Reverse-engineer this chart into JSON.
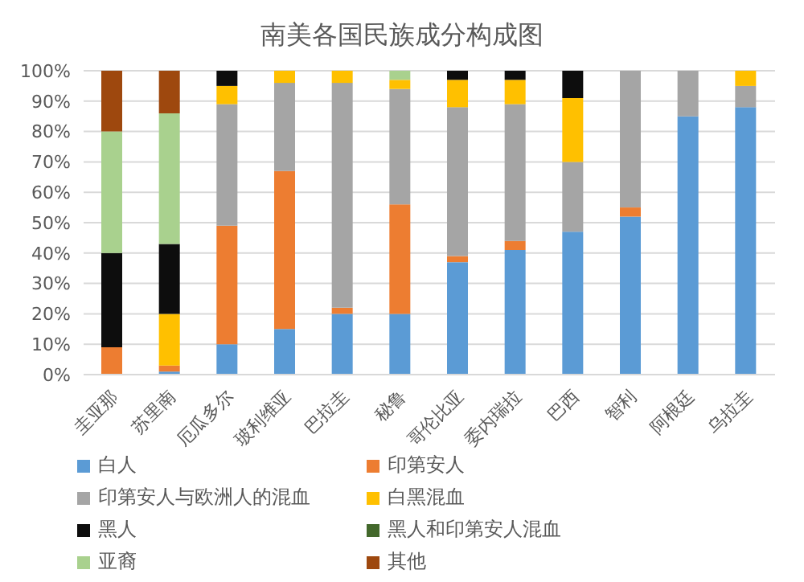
{
  "chart_data": {
    "type": "bar",
    "title": "南美各国民族成分构成图",
    "stacked": true,
    "categories": [
      "圭亚那",
      "苏里南",
      "厄瓜多尔",
      "玻利维亚",
      "巴拉圭",
      "秘鲁",
      "哥伦比亚",
      "委内瑞拉",
      "巴西",
      "智利",
      "阿根廷",
      "乌拉圭"
    ],
    "series": [
      {
        "name": "白人",
        "color": "#5b9bd5",
        "values": [
          null,
          1,
          10,
          15,
          20,
          20,
          37,
          41,
          47,
          52,
          85,
          88
        ]
      },
      {
        "name": "印第安人",
        "color": "#ed7d31",
        "values": [
          9,
          2,
          39,
          52,
          2,
          36,
          2,
          3,
          null,
          3,
          null,
          null
        ]
      },
      {
        "name": "印第安人与欧洲人的混血",
        "color": "#a5a5a5",
        "values": [
          null,
          null,
          40,
          29,
          74,
          38,
          49,
          45,
          23,
          45,
          15,
          7
        ]
      },
      {
        "name": "白黑混血",
        "color": "#ffc000",
        "values": [
          null,
          17,
          6,
          4,
          4,
          3,
          9,
          8,
          21,
          null,
          null,
          5
        ]
      },
      {
        "name": "黑人",
        "color": "#0d0d0d",
        "values": [
          31,
          23,
          5,
          null,
          null,
          null,
          3,
          3,
          9,
          null,
          null,
          null
        ]
      },
      {
        "name": "黑人和印第安人混血",
        "color": "#43682b",
        "values": [
          null,
          null,
          null,
          null,
          null,
          null,
          null,
          null,
          null,
          null,
          null,
          null
        ]
      },
      {
        "name": "亚裔",
        "color": "#a9d18e",
        "values": [
          40,
          43,
          null,
          null,
          null,
          3,
          null,
          null,
          null,
          null,
          null,
          null
        ]
      },
      {
        "name": "其他",
        "color": "#9e480e",
        "values": [
          20,
          14,
          null,
          null,
          null,
          null,
          null,
          null,
          null,
          null,
          null,
          null
        ]
      }
    ],
    "ylim": [
      0,
      100
    ],
    "yticks": [
      {
        "value": 0,
        "label": "0%"
      },
      {
        "value": 10,
        "label": "10%"
      },
      {
        "value": 20,
        "label": "20%"
      },
      {
        "value": 30,
        "label": "30%"
      },
      {
        "value": 40,
        "label": "40%"
      },
      {
        "value": 50,
        "label": "50%"
      },
      {
        "value": 60,
        "label": "60%"
      },
      {
        "value": 70,
        "label": "70%"
      },
      {
        "value": 80,
        "label": "80%"
      },
      {
        "value": 90,
        "label": "90%"
      },
      {
        "value": 100,
        "label": "100%"
      }
    ],
    "grid": "y",
    "legend": "bottom"
  }
}
